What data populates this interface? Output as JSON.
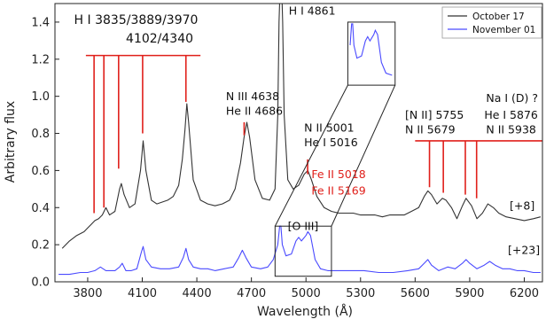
{
  "chart_data": {
    "type": "line",
    "xlabel": "Wavelength (Å)",
    "ylabel": "Arbitrary flux",
    "xlim": [
      3620,
      6300
    ],
    "ylim": [
      0.0,
      1.5
    ],
    "x_ticks": [
      "3800",
      "4100",
      "4400",
      "4700",
      "5000",
      "5300",
      "5600",
      "5900",
      "6200"
    ],
    "x_tick_values": [
      3800,
      4100,
      4400,
      4700,
      5000,
      5300,
      5600,
      5900,
      6200
    ],
    "y_ticks": [
      "0.0",
      "0.2",
      "0.4",
      "0.6",
      "0.8",
      "1.0",
      "1.2",
      "1.4"
    ],
    "y_tick_values": [
      0.0,
      0.2,
      0.4,
      0.6,
      0.8,
      1.0,
      1.2,
      1.4
    ],
    "legend_position": "top-right",
    "series": [
      {
        "name": "October 17",
        "color": "#333333",
        "offset_label": "[+8]",
        "points": [
          [
            3660,
            0.18
          ],
          [
            3700,
            0.22
          ],
          [
            3740,
            0.25
          ],
          [
            3780,
            0.27
          ],
          [
            3800,
            0.29
          ],
          [
            3820,
            0.31
          ],
          [
            3840,
            0.33
          ],
          [
            3860,
            0.34
          ],
          [
            3880,
            0.36
          ],
          [
            3900,
            0.4
          ],
          [
            3920,
            0.36
          ],
          [
            3950,
            0.38
          ],
          [
            3975,
            0.5
          ],
          [
            3985,
            0.53
          ],
          [
            4000,
            0.47
          ],
          [
            4030,
            0.4
          ],
          [
            4060,
            0.42
          ],
          [
            4090,
            0.6
          ],
          [
            4105,
            0.76
          ],
          [
            4120,
            0.6
          ],
          [
            4150,
            0.44
          ],
          [
            4180,
            0.42
          ],
          [
            4210,
            0.43
          ],
          [
            4240,
            0.44
          ],
          [
            4270,
            0.46
          ],
          [
            4300,
            0.52
          ],
          [
            4320,
            0.66
          ],
          [
            4335,
            0.82
          ],
          [
            4345,
            0.96
          ],
          [
            4355,
            0.86
          ],
          [
            4380,
            0.55
          ],
          [
            4420,
            0.44
          ],
          [
            4460,
            0.42
          ],
          [
            4500,
            0.41
          ],
          [
            4540,
            0.42
          ],
          [
            4580,
            0.44
          ],
          [
            4610,
            0.5
          ],
          [
            4640,
            0.64
          ],
          [
            4660,
            0.78
          ],
          [
            4675,
            0.86
          ],
          [
            4690,
            0.78
          ],
          [
            4720,
            0.55
          ],
          [
            4760,
            0.45
          ],
          [
            4800,
            0.44
          ],
          [
            4830,
            0.5
          ],
          [
            4845,
            0.9
          ],
          [
            4852,
            1.4
          ],
          [
            4858,
            1.6
          ],
          [
            4866,
            1.6
          ],
          [
            4872,
            1.4
          ],
          [
            4880,
            0.9
          ],
          [
            4900,
            0.55
          ],
          [
            4930,
            0.5
          ],
          [
            4960,
            0.52
          ],
          [
            4990,
            0.58
          ],
          [
            5010,
            0.6
          ],
          [
            5030,
            0.55
          ],
          [
            5060,
            0.46
          ],
          [
            5100,
            0.4
          ],
          [
            5140,
            0.38
          ],
          [
            5180,
            0.37
          ],
          [
            5220,
            0.37
          ],
          [
            5260,
            0.37
          ],
          [
            5300,
            0.36
          ],
          [
            5340,
            0.36
          ],
          [
            5380,
            0.36
          ],
          [
            5420,
            0.35
          ],
          [
            5460,
            0.36
          ],
          [
            5500,
            0.36
          ],
          [
            5540,
            0.36
          ],
          [
            5580,
            0.38
          ],
          [
            5620,
            0.4
          ],
          [
            5650,
            0.46
          ],
          [
            5670,
            0.49
          ],
          [
            5690,
            0.47
          ],
          [
            5720,
            0.42
          ],
          [
            5750,
            0.45
          ],
          [
            5770,
            0.44
          ],
          [
            5800,
            0.4
          ],
          [
            5830,
            0.34
          ],
          [
            5860,
            0.41
          ],
          [
            5880,
            0.45
          ],
          [
            5910,
            0.41
          ],
          [
            5940,
            0.34
          ],
          [
            5970,
            0.37
          ],
          [
            6000,
            0.42
          ],
          [
            6030,
            0.4
          ],
          [
            6060,
            0.37
          ],
          [
            6100,
            0.35
          ],
          [
            6150,
            0.34
          ],
          [
            6200,
            0.33
          ],
          [
            6250,
            0.34
          ],
          [
            6290,
            0.35
          ]
        ]
      },
      {
        "name": "November 01",
        "color": "#4a4aff",
        "offset_label": "[+23]",
        "points": [
          [
            3640,
            0.04
          ],
          [
            3700,
            0.04
          ],
          [
            3760,
            0.05
          ],
          [
            3800,
            0.05
          ],
          [
            3840,
            0.06
          ],
          [
            3870,
            0.08
          ],
          [
            3900,
            0.06
          ],
          [
            3950,
            0.06
          ],
          [
            3975,
            0.08
          ],
          [
            3990,
            0.1
          ],
          [
            4010,
            0.06
          ],
          [
            4040,
            0.06
          ],
          [
            4070,
            0.07
          ],
          [
            4095,
            0.16
          ],
          [
            4105,
            0.19
          ],
          [
            4120,
            0.12
          ],
          [
            4150,
            0.08
          ],
          [
            4200,
            0.07
          ],
          [
            4250,
            0.07
          ],
          [
            4300,
            0.08
          ],
          [
            4325,
            0.13
          ],
          [
            4340,
            0.18
          ],
          [
            4355,
            0.12
          ],
          [
            4380,
            0.08
          ],
          [
            4420,
            0.07
          ],
          [
            4460,
            0.07
          ],
          [
            4500,
            0.06
          ],
          [
            4550,
            0.07
          ],
          [
            4600,
            0.08
          ],
          [
            4630,
            0.13
          ],
          [
            4650,
            0.17
          ],
          [
            4670,
            0.13
          ],
          [
            4700,
            0.08
          ],
          [
            4750,
            0.07
          ],
          [
            4790,
            0.08
          ],
          [
            4820,
            0.12
          ],
          [
            4845,
            0.2
          ],
          [
            4855,
            0.3
          ],
          [
            4862,
            0.3
          ],
          [
            4870,
            0.2
          ],
          [
            4890,
            0.14
          ],
          [
            4920,
            0.15
          ],
          [
            4945,
            0.22
          ],
          [
            4960,
            0.24
          ],
          [
            4975,
            0.22
          ],
          [
            5000,
            0.25
          ],
          [
            5010,
            0.27
          ],
          [
            5025,
            0.25
          ],
          [
            5050,
            0.12
          ],
          [
            5080,
            0.07
          ],
          [
            5120,
            0.06
          ],
          [
            5180,
            0.06
          ],
          [
            5250,
            0.06
          ],
          [
            5320,
            0.06
          ],
          [
            5400,
            0.05
          ],
          [
            5480,
            0.05
          ],
          [
            5560,
            0.06
          ],
          [
            5620,
            0.07
          ],
          [
            5650,
            0.1
          ],
          [
            5670,
            0.12
          ],
          [
            5690,
            0.09
          ],
          [
            5730,
            0.06
          ],
          [
            5780,
            0.08
          ],
          [
            5820,
            0.07
          ],
          [
            5860,
            0.1
          ],
          [
            5880,
            0.12
          ],
          [
            5900,
            0.1
          ],
          [
            5940,
            0.07
          ],
          [
            5980,
            0.09
          ],
          [
            6010,
            0.11
          ],
          [
            6040,
            0.09
          ],
          [
            6080,
            0.07
          ],
          [
            6120,
            0.07
          ],
          [
            6160,
            0.06
          ],
          [
            6200,
            0.06
          ],
          [
            6250,
            0.05
          ],
          [
            6290,
            0.05
          ]
        ]
      }
    ],
    "marker_groups": [
      {
        "color": "#e0201b",
        "bar_y": 1.22,
        "bar_x": [
          3790,
          4420
        ],
        "lines": [
          {
            "x": 3835,
            "bottom": 0.37
          },
          {
            "x": 3889,
            "bottom": 0.4
          },
          {
            "x": 3970,
            "bottom": 0.61
          },
          {
            "x": 4102,
            "bottom": 0.8
          },
          {
            "x": 4340,
            "bottom": 0.97
          }
        ]
      },
      {
        "color": "#e0201b",
        "bar_y": 0.76,
        "bar_x": [
          5600,
          6300
        ],
        "lines": [
          {
            "x": 5679,
            "bottom": 0.51
          },
          {
            "x": 5755,
            "bottom": 0.48
          },
          {
            "x": 5876,
            "bottom": 0.47
          },
          {
            "x": 5938,
            "bottom": 0.45
          }
        ]
      }
    ],
    "single_markers": [
      {
        "x": 4660,
        "top": 0.86,
        "bottom": 0.79,
        "color": "#e0201b"
      },
      {
        "x": 5009,
        "top": 0.66,
        "bottom": 0.58,
        "color": "#e0201b"
      }
    ],
    "annotations": [
      {
        "text": "H I 3835/3889/3970",
        "x": 3725,
        "y": 1.39,
        "style": "big"
      },
      {
        "text": "4102/4340",
        "x": 4010,
        "y": 1.29,
        "style": "big"
      },
      {
        "text": "H I 4861",
        "x": 4905,
        "y": 1.44,
        "style": "black"
      },
      {
        "text": "N III 4638",
        "x": 4560,
        "y": 0.98,
        "style": "black"
      },
      {
        "text": "He II 4686",
        "x": 4560,
        "y": 0.9,
        "style": "black"
      },
      {
        "text": "N II 5001",
        "x": 4990,
        "y": 0.81,
        "style": "black"
      },
      {
        "text": "He I 5016",
        "x": 4990,
        "y": 0.73,
        "style": "black"
      },
      {
        "text": "Fe II 5018",
        "x": 5030,
        "y": 0.56,
        "style": "red"
      },
      {
        "text": "Fe II 5169",
        "x": 5030,
        "y": 0.47,
        "style": "red"
      },
      {
        "text": "[O III]",
        "x": 4900,
        "y": 0.28,
        "style": "black"
      },
      {
        "text": "[N II] 5755",
        "x": 5545,
        "y": 0.88,
        "style": "black"
      },
      {
        "text": "N II 5679",
        "x": 5545,
        "y": 0.8,
        "style": "black"
      },
      {
        "text": "Na I (D) ?",
        "x": 5990,
        "y": 0.97,
        "style": "black"
      },
      {
        "text": "He I 5876",
        "x": 5980,
        "y": 0.88,
        "style": "black"
      },
      {
        "text": "N II 5938",
        "x": 5990,
        "y": 0.8,
        "style": "black"
      },
      {
        "text": "[+8]",
        "x": 6120,
        "y": 0.39,
        "style": "black"
      },
      {
        "text": "[+23]",
        "x": 6110,
        "y": 0.15,
        "style": "black"
      }
    ],
    "inset": {
      "source_x": [
        4830,
        5140
      ],
      "source_y": [
        0.03,
        0.3
      ],
      "target_x": [
        5230,
        5490
      ],
      "target_y": [
        1.06,
        1.4
      ],
      "series_color": "#4a4aff"
    }
  }
}
